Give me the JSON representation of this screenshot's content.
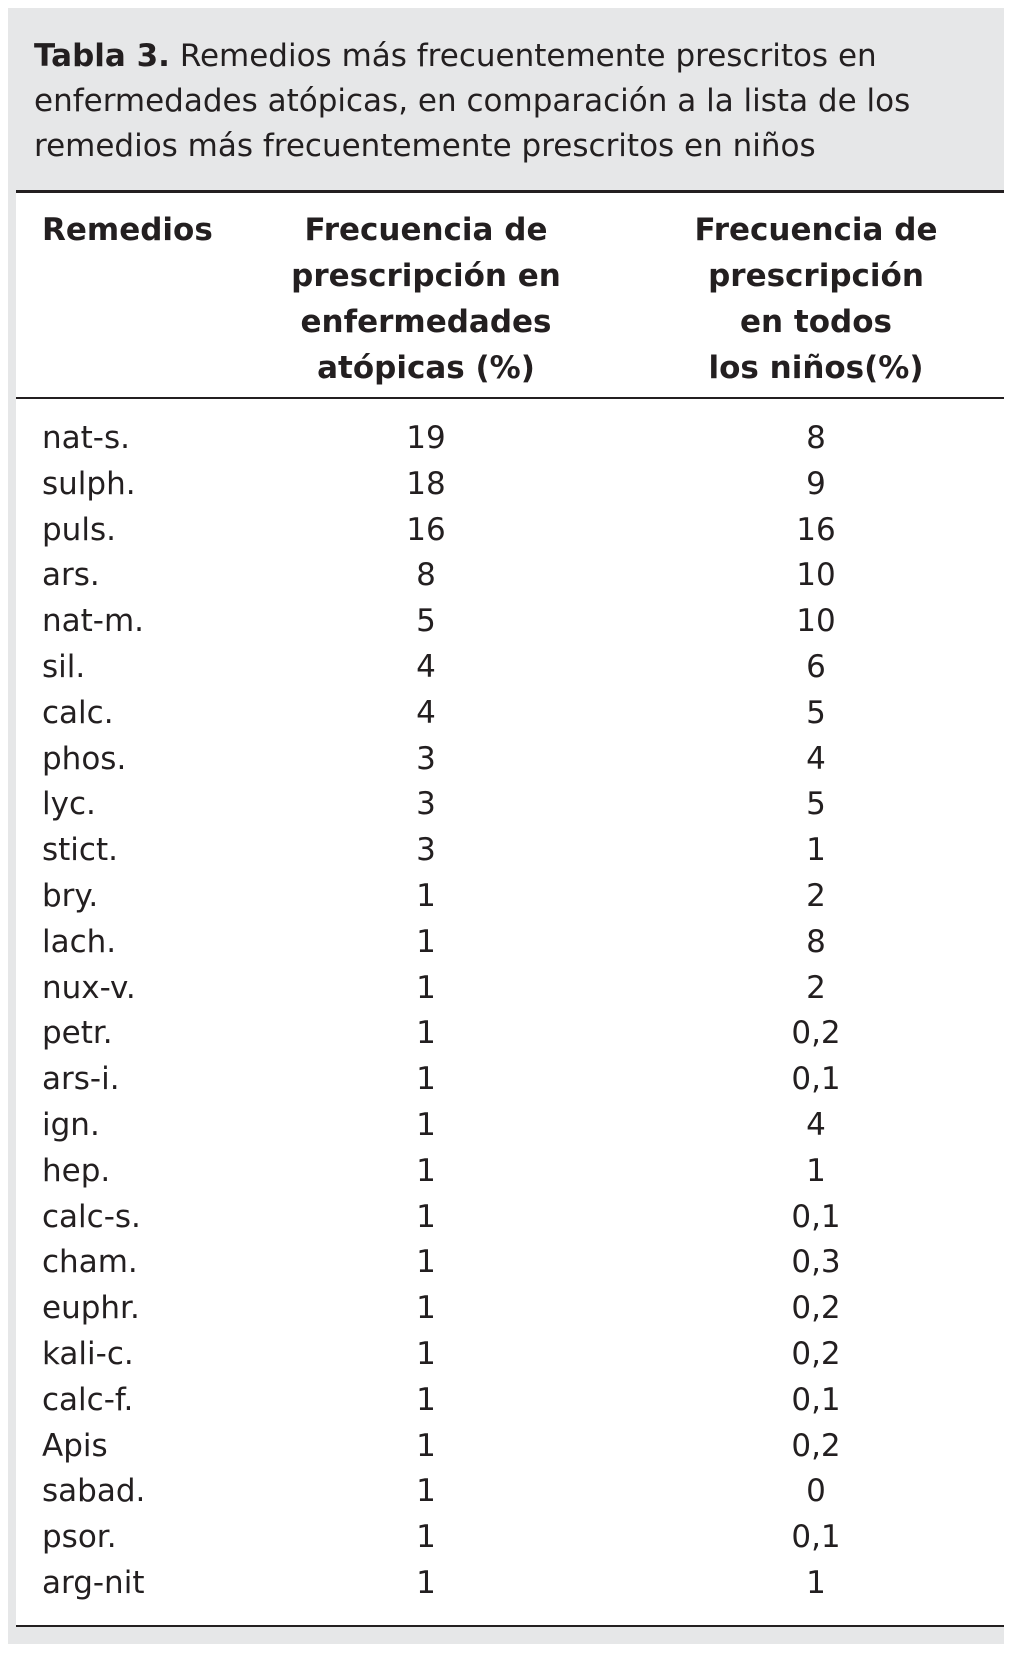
{
  "title": {
    "label": "Tabla 3.",
    "text": "Remedios más frecuentemente prescritos en enfermedades atópicas, en comparación a la lista de los remedios más frecuentemente prescritos en niños"
  },
  "table": {
    "headers": [
      "Remedios",
      "Frecuencia de\nprescripción en\nenfermedades\natópicas (%)",
      "Frecuencia de\nprescripción\nen todos\nlos niños(%)"
    ],
    "rows": [
      [
        "nat-s.",
        "19",
        "8"
      ],
      [
        "sulph.",
        "18",
        "9"
      ],
      [
        "puls.",
        "16",
        "16"
      ],
      [
        "ars.",
        "8",
        "10"
      ],
      [
        "nat-m.",
        "5",
        "10"
      ],
      [
        "sil.",
        "4",
        "6"
      ],
      [
        "calc.",
        "4",
        "5"
      ],
      [
        "phos.",
        "3",
        "4"
      ],
      [
        "lyc.",
        "3",
        "5"
      ],
      [
        "stict.",
        "3",
        "1"
      ],
      [
        "bry.",
        "1",
        "2"
      ],
      [
        "lach.",
        "1",
        "8"
      ],
      [
        "nux-v.",
        "1",
        "2"
      ],
      [
        "petr.",
        "1",
        "0,2"
      ],
      [
        "ars-i.",
        "1",
        "0,1"
      ],
      [
        "ign.",
        "1",
        "4"
      ],
      [
        "hep.",
        "1",
        "1"
      ],
      [
        "calc-s.",
        "1",
        "0,1"
      ],
      [
        "cham.",
        "1",
        "0,3"
      ],
      [
        "euphr.",
        "1",
        "0,2"
      ],
      [
        "kali-c.",
        "1",
        "0,2"
      ],
      [
        "calc-f.",
        "1",
        "0,1"
      ],
      [
        "Apis",
        "1",
        "0,2"
      ],
      [
        "sabad.",
        "1",
        "0"
      ],
      [
        "psor.",
        "1",
        "0,1"
      ],
      [
        "arg-nit",
        "1",
        "1"
      ]
    ]
  }
}
